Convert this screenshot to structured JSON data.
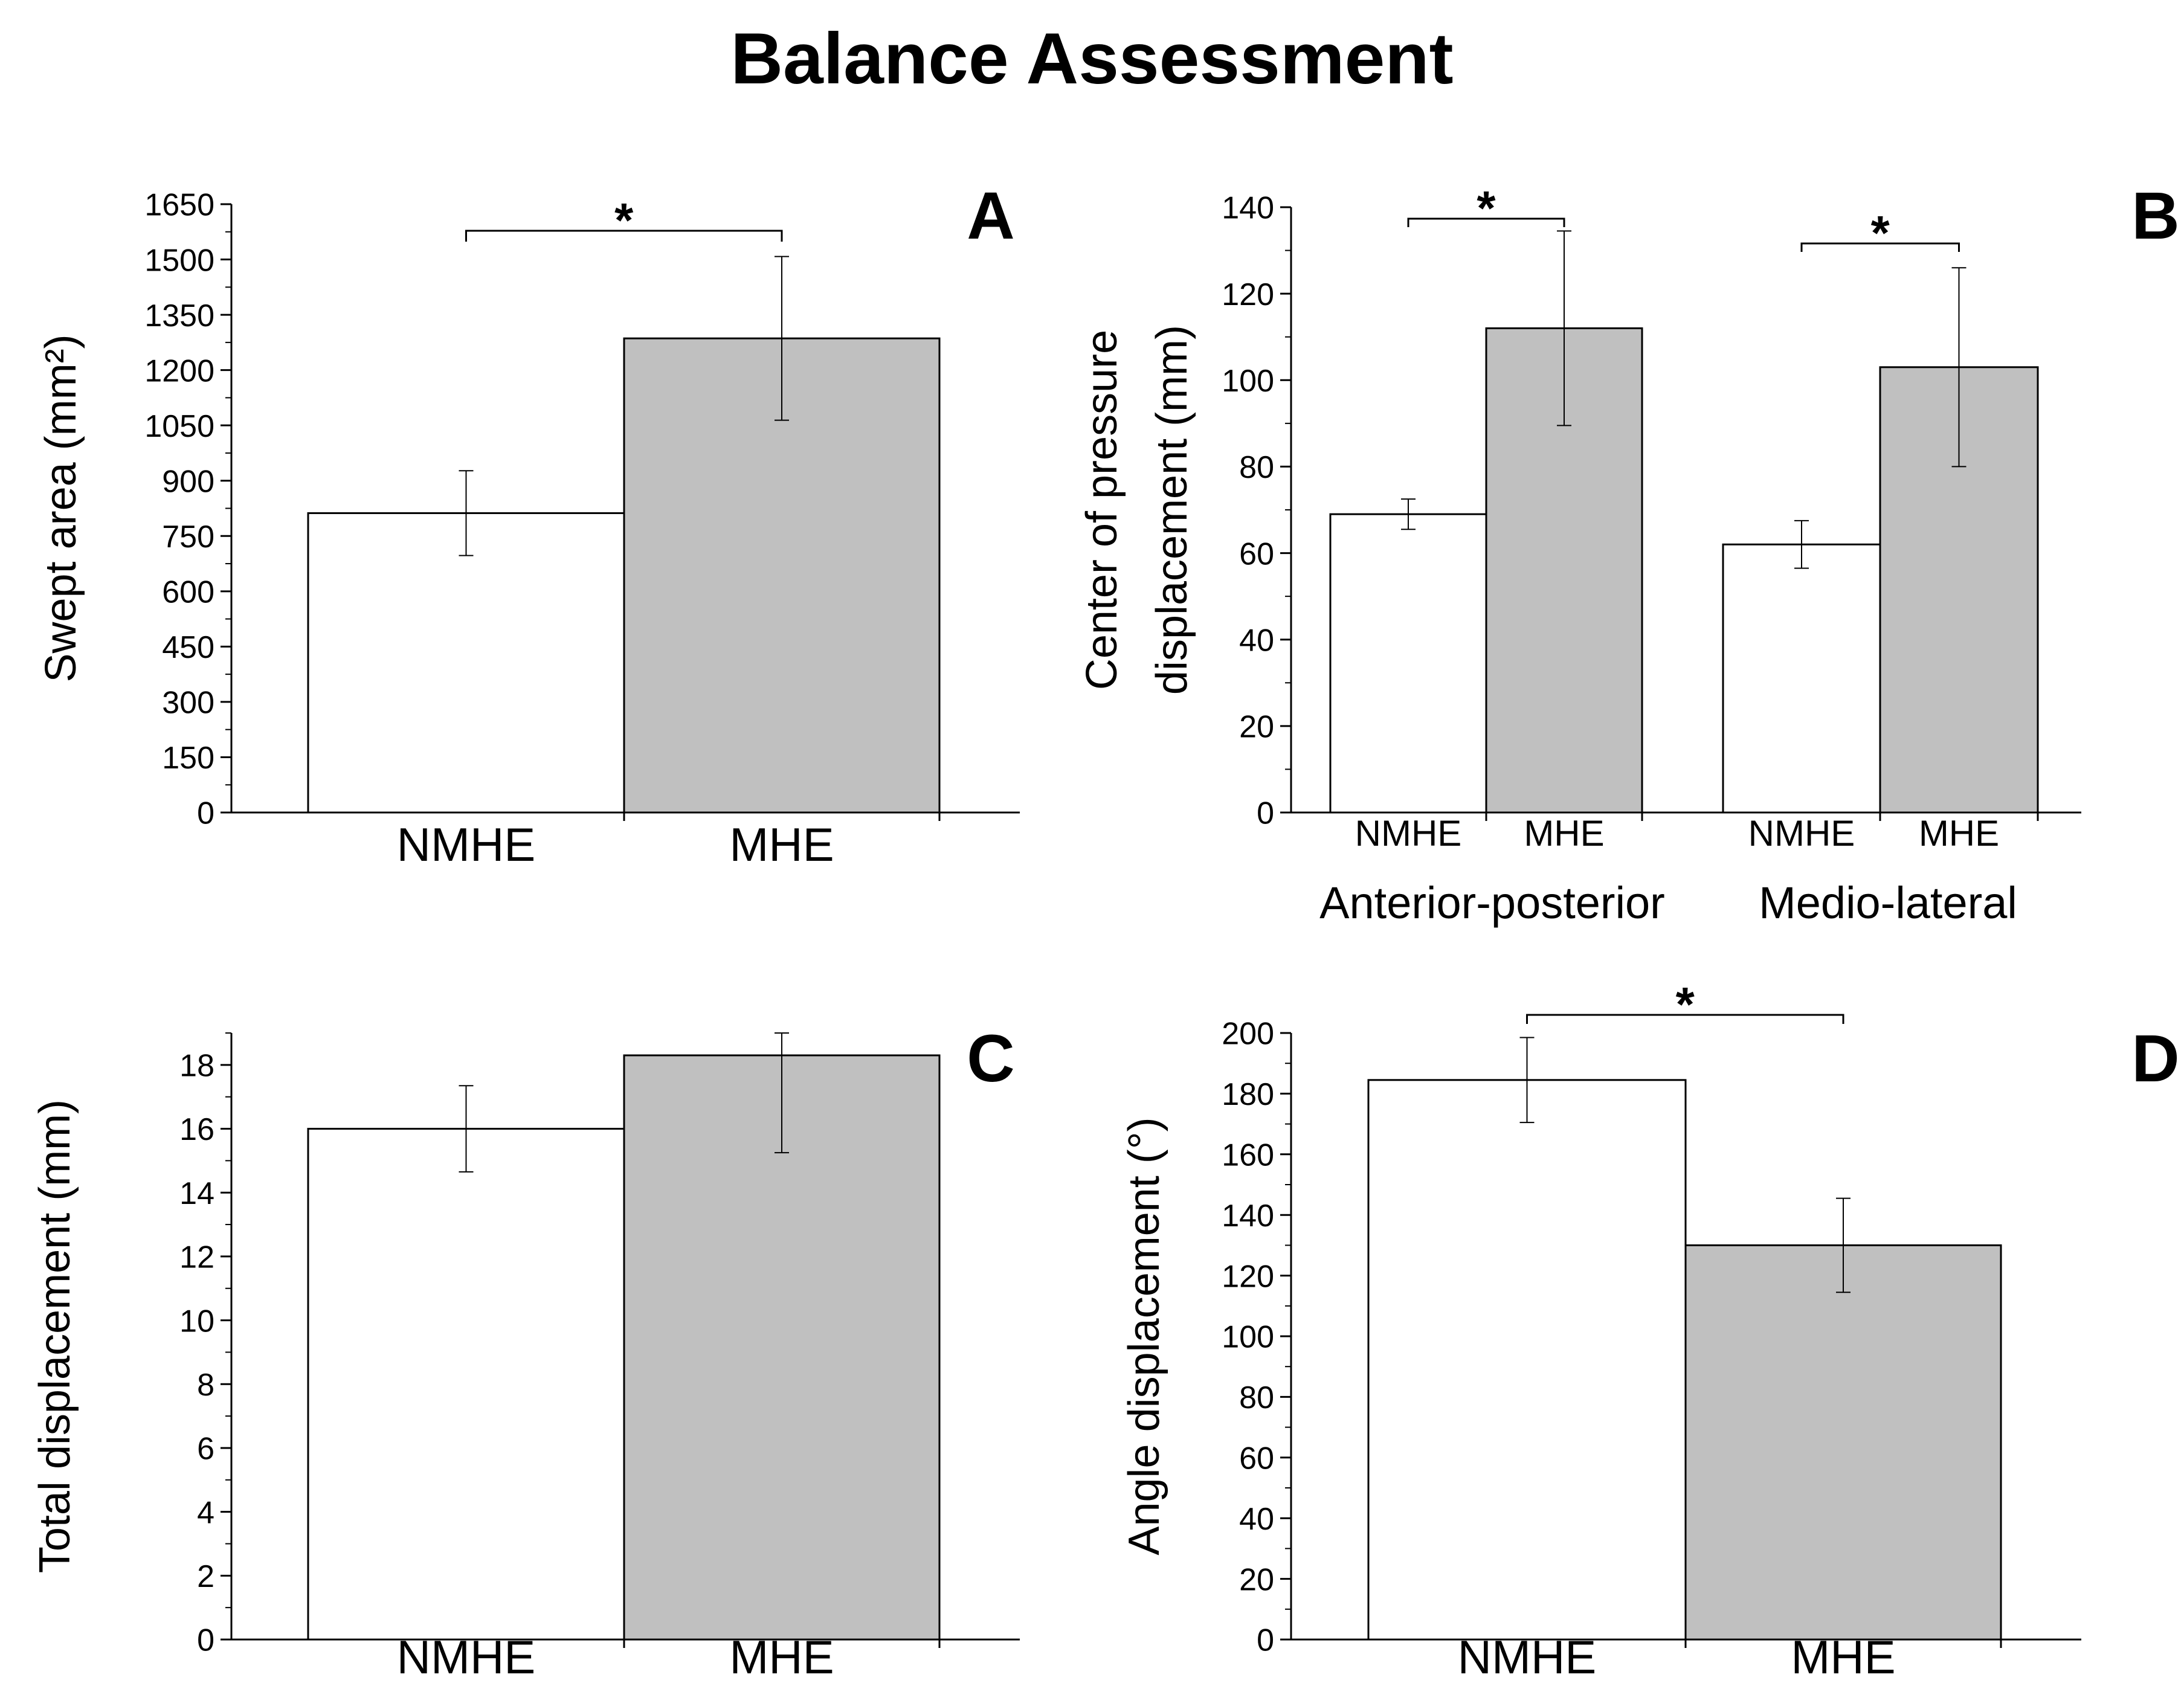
{
  "figure": {
    "title": "Balance  Assessment",
    "colors": {
      "nmhe_fill": "#ffffff",
      "mhe_fill": "#c0c0c0",
      "stroke": "#000000"
    }
  },
  "chart_data": [
    {
      "id": "A",
      "panel_label": "A",
      "type": "bar",
      "title": "",
      "ylabel": "Swept area (mm²)",
      "ylim": [
        0,
        1650
      ],
      "yticks": [
        "0",
        "150",
        "300",
        "450",
        "600",
        "750",
        "900",
        "1050",
        "1200",
        "1350",
        "1500",
        "1650"
      ],
      "categories": [
        "NMHE",
        "MHE"
      ],
      "values": [
        812,
        1286
      ],
      "errors": [
        115,
        222
      ],
      "significance": [
        {
          "from": 0,
          "to": 1,
          "label": "*"
        }
      ]
    },
    {
      "id": "B",
      "panel_label": "B",
      "type": "bar",
      "title": "",
      "ylabel": [
        "Center of pressure",
        "displacement (mm)"
      ],
      "ylim": [
        0,
        140
      ],
      "yticks": [
        "0",
        "20",
        "40",
        "60",
        "80",
        "100",
        "120",
        "140"
      ],
      "groups": [
        "Anterior-posterior",
        "Medio-lateral"
      ],
      "categories": [
        "NMHE",
        "MHE",
        "NMHE",
        "MHE"
      ],
      "values": [
        69,
        112,
        62,
        103
      ],
      "errors": [
        3.5,
        22.5,
        5.5,
        23
      ],
      "significance": [
        {
          "from": 0,
          "to": 1,
          "label": "*"
        },
        {
          "from": 2,
          "to": 3,
          "label": "*"
        }
      ]
    },
    {
      "id": "C",
      "panel_label": "C",
      "type": "bar",
      "title": "",
      "ylabel": "Total displacement (mm)",
      "ylim": [
        0,
        19
      ],
      "yticks": [
        "0",
        "2",
        "4",
        "6",
        "8",
        "10",
        "12",
        "14",
        "16",
        "18"
      ],
      "categories": [
        "NMHE",
        "MHE"
      ],
      "values": [
        16.0,
        18.3
      ],
      "errors": [
        1.35,
        3.05
      ],
      "significance": []
    },
    {
      "id": "D",
      "panel_label": "D",
      "type": "bar",
      "title": "",
      "ylabel": "Angle displacement (°)",
      "ylim": [
        0,
        200
      ],
      "yticks": [
        "0",
        "20",
        "40",
        "60",
        "80",
        "100",
        "120",
        "140",
        "160",
        "180",
        "200"
      ],
      "categories": [
        "NMHE",
        "MHE"
      ],
      "values": [
        184.5,
        130
      ],
      "errors": [
        14,
        15.5
      ],
      "significance": [
        {
          "from": 0,
          "to": 1,
          "label": "*"
        }
      ]
    }
  ]
}
